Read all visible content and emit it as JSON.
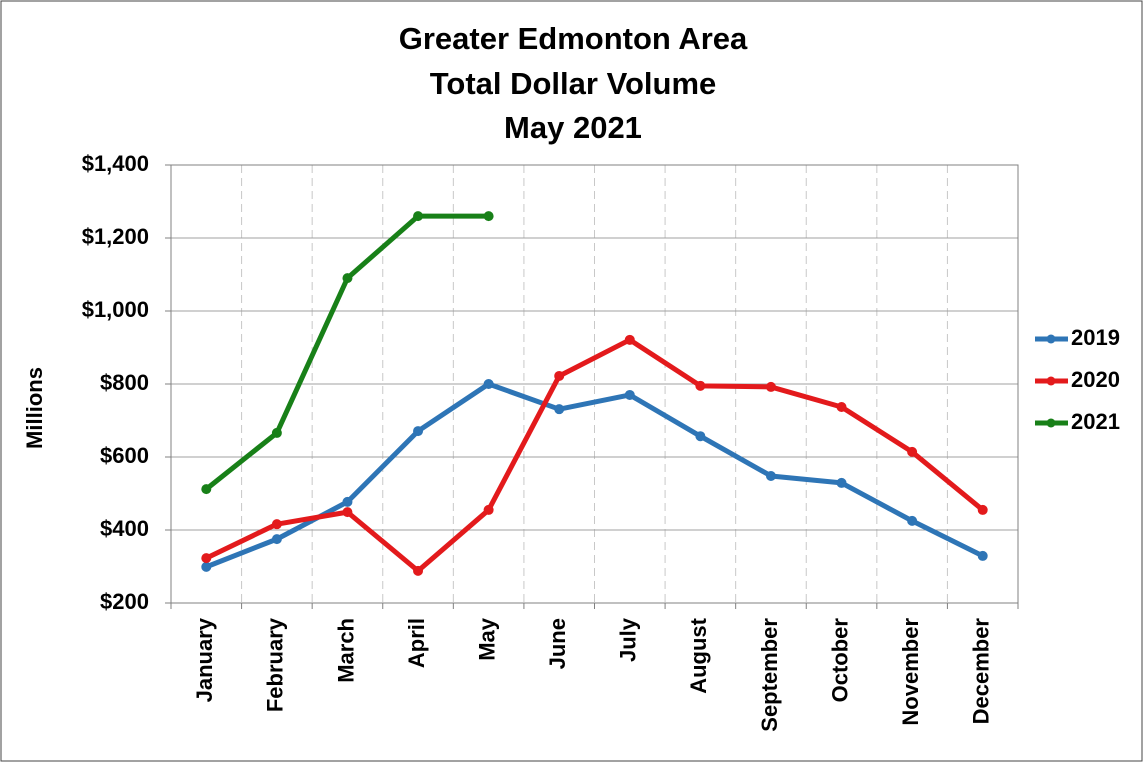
{
  "chart_data": {
    "type": "line",
    "title": [
      "Greater Edmonton Area",
      "Total Dollar Volume",
      "May 2021"
    ],
    "y_label": "Millions",
    "categories": [
      "January",
      "February",
      "March",
      "April",
      "May",
      "June",
      "July",
      "August",
      "September",
      "October",
      "November",
      "December"
    ],
    "series": [
      {
        "name": "2019",
        "color": "#2e75b6",
        "values": [
          299,
          375,
          477,
          671,
          800,
          731,
          770,
          657,
          548,
          529,
          425,
          329
        ]
      },
      {
        "name": "2020",
        "color": "#e31a1c",
        "values": [
          323,
          416,
          449,
          288,
          455,
          822,
          921,
          795,
          792,
          737,
          614,
          455
        ]
      },
      {
        "name": "2021",
        "color": "#188018",
        "values": [
          512,
          666,
          1090,
          1260,
          1260,
          null,
          null,
          null,
          null,
          null,
          null,
          null
        ]
      }
    ],
    "ylim": [
      200,
      1400
    ],
    "yticks": [
      {
        "value": 200,
        "label": "$200"
      },
      {
        "value": 400,
        "label": "$400"
      },
      {
        "value": 600,
        "label": "$600"
      },
      {
        "value": 800,
        "label": "$800"
      },
      {
        "value": 1000,
        "label": "$1,000"
      },
      {
        "value": 1200,
        "label": "$1,200"
      },
      {
        "value": 1400,
        "label": "$1,400"
      }
    ],
    "grid": true,
    "legend": "right"
  }
}
